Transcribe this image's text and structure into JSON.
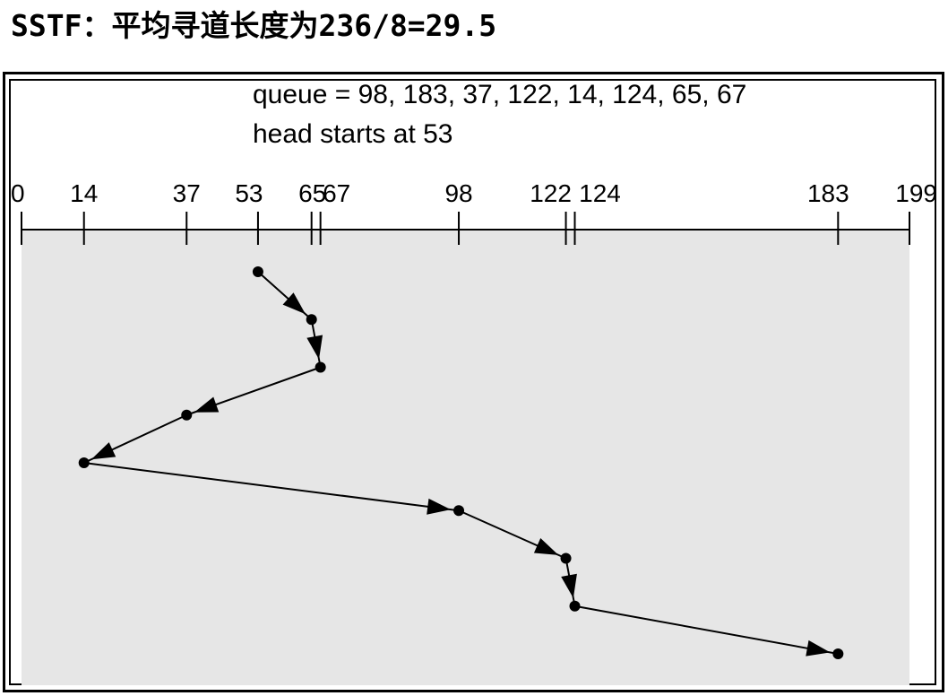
{
  "title": "SSTF：平均寻道长度为236/8=29.5",
  "queue_text": "queue = 98, 183, 37, 122, 14, 124, 65, 67",
  "head_text": "head starts at 53",
  "axis": {
    "min": 0,
    "max": 199,
    "tick_values": [
      0,
      14,
      37,
      53,
      65,
      67,
      98,
      122,
      124,
      183,
      199
    ]
  },
  "seek_order": [
    53,
    65,
    67,
    37,
    14,
    98,
    122,
    124,
    183
  ],
  "colors": {
    "plot_background": "#e6e6e6",
    "line": "#000000"
  }
}
